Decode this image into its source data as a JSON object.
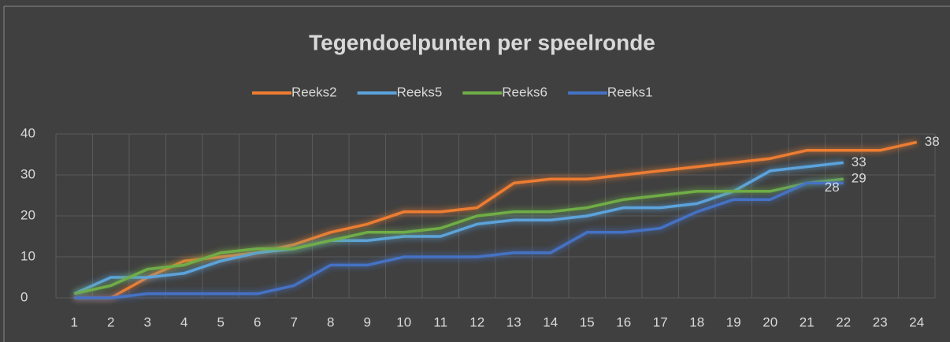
{
  "chart_data": {
    "type": "line",
    "title": "Tegendoelpunten per speelronde",
    "categories": [
      "1",
      "2",
      "3",
      "4",
      "5",
      "6",
      "7",
      "8",
      "9",
      "10",
      "11",
      "12",
      "13",
      "14",
      "15",
      "16",
      "17",
      "18",
      "19",
      "20",
      "21",
      "22",
      "23",
      "24"
    ],
    "series": [
      {
        "name": "Reeks2",
        "color": "#ed7d31",
        "values": [
          0,
          0,
          5,
          9,
          10,
          11,
          13,
          16,
          18,
          21,
          21,
          22,
          28,
          29,
          29,
          30,
          31,
          32,
          33,
          34,
          36,
          36,
          36,
          38
        ]
      },
      {
        "name": "Reeks5",
        "color": "#5ba3dc",
        "values": [
          1,
          5,
          5,
          6,
          9,
          11,
          12,
          14,
          14,
          15,
          15,
          18,
          19,
          19,
          20,
          22,
          22,
          23,
          26,
          31,
          32,
          33,
          null,
          null
        ]
      },
      {
        "name": "Reeks6",
        "color": "#70ad47",
        "values": [
          1,
          3,
          7,
          8,
          11,
          12,
          12,
          14,
          16,
          16,
          17,
          20,
          21,
          21,
          22,
          24,
          25,
          26,
          26,
          26,
          28,
          29,
          null,
          null
        ]
      },
      {
        "name": "Reeks1",
        "color": "#4472c4",
        "values": [
          0,
          0,
          1,
          1,
          1,
          1,
          3,
          8,
          8,
          10,
          10,
          10,
          11,
          11,
          16,
          16,
          17,
          21,
          24,
          24,
          28,
          28,
          null,
          null
        ]
      }
    ],
    "ylim": [
      0,
      40
    ],
    "yticks": [
      0,
      10,
      20,
      30,
      40
    ],
    "grid": true,
    "label_last": true,
    "legend": "top"
  }
}
